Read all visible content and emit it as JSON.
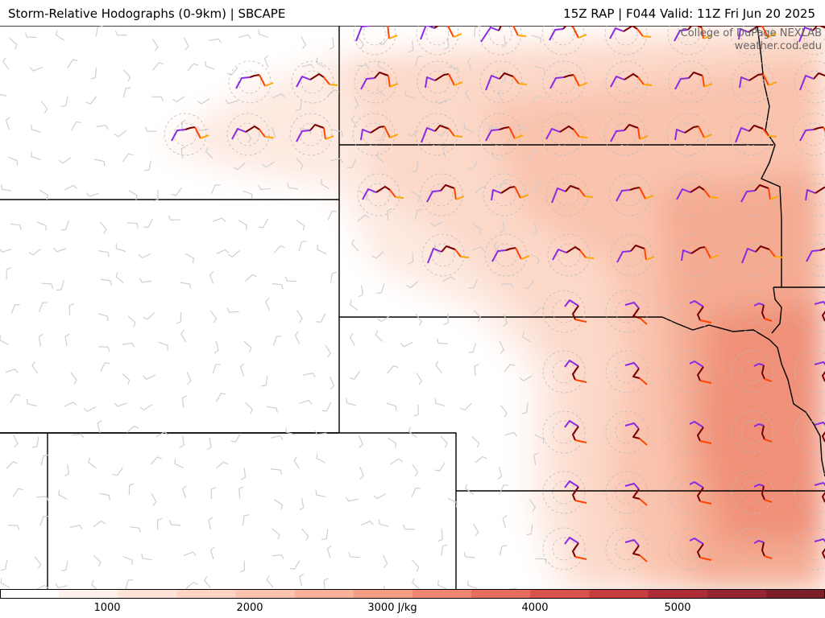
{
  "header": {
    "title_left": "Storm-Relative Hodographs (0-9km) | SBCAPE",
    "title_right": "15Z RAP | F044 Valid: 11Z Fri Jun 20 2025"
  },
  "credit": {
    "line1": "College of DuPage NEXLAB",
    "line2": "weather.cod.edu"
  },
  "colorbar": {
    "ticks": [
      "1000",
      "2000",
      "3000 J/kg",
      "4000",
      "5000"
    ],
    "colors": [
      "#ffffff",
      "#fff0ea",
      "#ffe3d8",
      "#ffd4c4",
      "#fcc3ae",
      "#f9b199",
      "#f59c85",
      "#ef8672",
      "#e66d5e",
      "#d9534d",
      "#c63d40",
      "#ad2d37",
      "#952631",
      "#7c1f2a"
    ]
  },
  "legend_colors": {
    "cape_base": "#fde3d6",
    "hodo_low": "#7a0000",
    "hodo_mid": "#ff4500",
    "hodo_high": "#ffa500",
    "hodo_top": "#8a2be2"
  }
}
